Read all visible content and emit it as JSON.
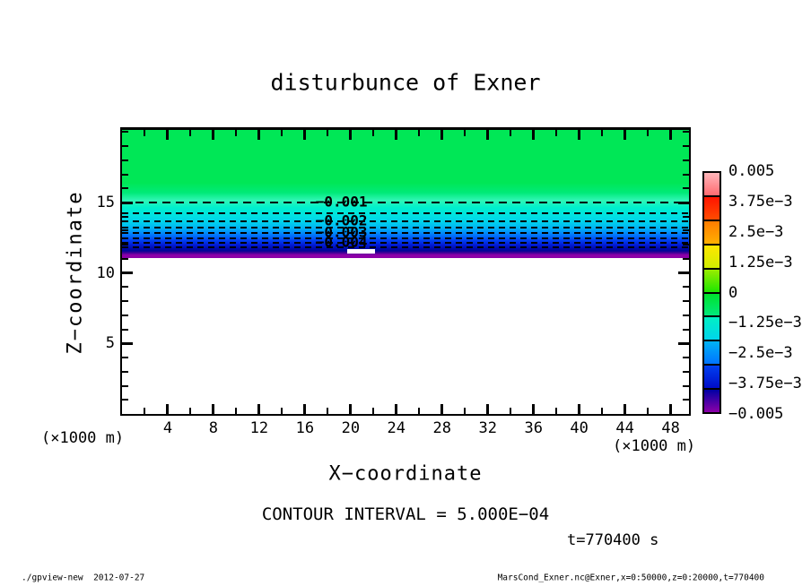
{
  "title": "disturbunce of Exner",
  "annotations": {
    "contour_interval": "CONTOUR INTERVAL = 5.000E−04",
    "time": "t=770400 s"
  },
  "footer": {
    "left": "./gpview-new  2012-07-27",
    "right": "MarsCond_Exner.nc@Exner,x=0:50000,z=0:20000,t=770400"
  },
  "chart_data": {
    "type": "filled_contour",
    "title": "disturbunce of Exner",
    "variable": "Exner",
    "contour_interval": 0.0005,
    "time_seconds": 770400,
    "x_axis": {
      "label": "X−coordinate",
      "unit": "(×1000 m)",
      "xlim": [
        0,
        49.6
      ],
      "data_range_m": "x=0:50000",
      "major_ticks": [
        4,
        8,
        12,
        16,
        20,
        24,
        28,
        32,
        36,
        40,
        44,
        48
      ],
      "minor_tick_step": 2
    },
    "y_axis": {
      "label": "Z−coordinate",
      "unit": "(×1000 m)",
      "ylim": [
        0,
        20.15
      ],
      "data_range_m": "z=0:20000",
      "major_ticks": [
        5,
        10,
        15
      ],
      "minor_tick_step": 1
    },
    "contour_label_x": 19.2,
    "contour_lines": [
      {
        "value": -0.001,
        "z": 15.0,
        "label": "−0.001",
        "dash": [
          9,
          6
        ],
        "width": 2.5
      },
      {
        "value": -0.0015,
        "z": 14.24,
        "label": null,
        "dash": [
          7,
          5
        ],
        "width": 2
      },
      {
        "value": -0.002,
        "z": 13.67,
        "label": "−0.002",
        "dash": [
          7,
          5
        ],
        "width": 2
      },
      {
        "value": -0.0025,
        "z": 13.22,
        "label": null,
        "dash": [
          7,
          5
        ],
        "width": 2
      },
      {
        "value": -0.003,
        "z": 12.84,
        "label": "−0.003",
        "dash": [
          7,
          5
        ],
        "width": 2
      },
      {
        "value": -0.0035,
        "z": 12.49,
        "label": null,
        "dash": [
          7,
          5
        ],
        "width": 2
      },
      {
        "value": -0.004,
        "z": 12.14,
        "label": "−0.004",
        "dash": [
          7,
          5
        ],
        "width": 2
      },
      {
        "value": -0.0045,
        "z": 11.82,
        "label": null,
        "dash": [
          7,
          5
        ],
        "width": 2
      }
    ],
    "colorbar": {
      "tick_labels": [
        "0.005",
        "3.75e−3",
        "2.5e−3",
        "1.25e−3",
        "0",
        "−1.25e−3",
        "−2.5e−3",
        "−3.75e−3",
        "−0.005"
      ],
      "cells": [
        {
          "range": [
            0.005,
            0.004
          ],
          "colors": [
            "#ffb6ba",
            "#ff6a70"
          ]
        },
        {
          "range": [
            0.004,
            0.003
          ],
          "colors": [
            "#ff1400",
            "#ff4c00"
          ]
        },
        {
          "range": [
            0.003,
            0.002
          ],
          "colors": [
            "#ff7c00",
            "#ffb000"
          ]
        },
        {
          "range": [
            0.002,
            0.001
          ],
          "colors": [
            "#ffe600",
            "#d0ee00"
          ]
        },
        {
          "range": [
            0.001,
            0.0
          ],
          "colors": [
            "#9aec00",
            "#1ee600"
          ]
        },
        {
          "range": [
            0.0,
            -0.001
          ],
          "colors": [
            "#00e32c",
            "#00e87c"
          ]
        },
        {
          "range": [
            -0.001,
            -0.002
          ],
          "colors": [
            "#00f0c4",
            "#00d4ec"
          ]
        },
        {
          "range": [
            -0.002,
            -0.003
          ],
          "colors": [
            "#00b2f4",
            "#0074ff"
          ]
        },
        {
          "range": [
            -0.003,
            -0.004
          ],
          "colors": [
            "#0040f0",
            "#000cc8"
          ]
        },
        {
          "range": [
            -0.004,
            -0.005
          ],
          "colors": [
            "#0000a4",
            "#8c00a8"
          ]
        }
      ]
    },
    "fill_profile": [
      [
        20.15,
        "#00e756"
      ],
      [
        16.4,
        "#00e756"
      ],
      [
        15.7,
        "#00ea78"
      ],
      [
        15.15,
        "#30f6b6"
      ],
      [
        14.65,
        "#00f0cc"
      ],
      [
        14.15,
        "#00e4e0"
      ],
      [
        13.62,
        "#00d2ec"
      ],
      [
        13.2,
        "#00b4f4"
      ],
      [
        12.9,
        "#0092f8"
      ],
      [
        12.6,
        "#006afc"
      ],
      [
        12.32,
        "#0040f0"
      ],
      [
        12.02,
        "#001ed8"
      ],
      [
        11.78,
        "#000cb4"
      ],
      [
        11.58,
        "#000496"
      ],
      [
        11.45,
        "#380095"
      ],
      [
        11.28,
        "#8c00a8"
      ],
      [
        11.06,
        "#8c00a8"
      ],
      [
        11.06,
        "#ffffff"
      ],
      [
        0.0,
        "#ffffff"
      ]
    ],
    "unshaded_below_z": 11.06,
    "notch": {
      "x": [
        19.7,
        22.1
      ],
      "z": [
        11.4,
        11.72
      ]
    }
  }
}
